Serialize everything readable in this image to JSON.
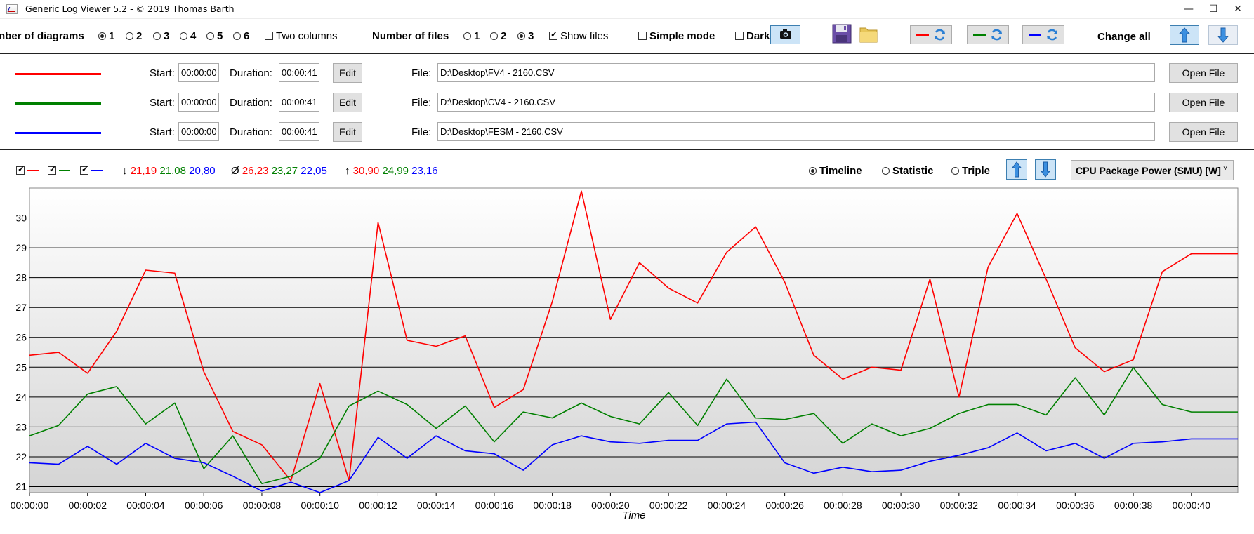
{
  "window": {
    "title": "Generic Log Viewer 5.2 - © 2019 Thomas Barth",
    "min_glyph": "—",
    "max_glyph": "☐",
    "close_glyph": "✕"
  },
  "toolbar": {
    "diagrams_label": "nber of diagrams",
    "diagram_options": [
      "1",
      "2",
      "3",
      "4",
      "5",
      "6"
    ],
    "diagram_selected": "1",
    "two_columns_label": "Two columns",
    "files_label": "Number of files",
    "file_options": [
      "1",
      "2",
      "3"
    ],
    "file_selected": "3",
    "show_files_label": "Show files",
    "simple_mode_label": "Simple mode",
    "dark_label": "Dark",
    "change_all_label": "Change all"
  },
  "files": [
    {
      "color": "#ff0000",
      "start_label": "Start:",
      "start": "00:00:00",
      "duration_label": "Duration:",
      "duration": "00:00:41",
      "edit_label": "Edit",
      "file_label": "File:",
      "path": "D:\\Desktop\\FV4 - 2160.CSV",
      "open_label": "Open File"
    },
    {
      "color": "#008000",
      "start_label": "Start:",
      "start": "00:00:00",
      "duration_label": "Duration:",
      "duration": "00:00:41",
      "edit_label": "Edit",
      "file_label": "File:",
      "path": "D:\\Desktop\\CV4 - 2160.CSV",
      "open_label": "Open File"
    },
    {
      "color": "#0000ff",
      "start_label": "Start:",
      "start": "00:00:00",
      "duration_label": "Duration:",
      "duration": "00:00:41",
      "edit_label": "Edit",
      "file_label": "File:",
      "path": "D:\\Desktop\\FESM - 2160.CSV",
      "open_label": "Open File"
    }
  ],
  "stats": {
    "min_symbol": "↓",
    "min": [
      "21,19",
      "21,08",
      "20,80"
    ],
    "avg_symbol": "Ø",
    "avg": [
      "26,23",
      "23,27",
      "22,05"
    ],
    "max_symbol": "↑",
    "max": [
      "30,90",
      "24,99",
      "23,16"
    ]
  },
  "view_modes": [
    "Timeline",
    "Statistic",
    "Triple"
  ],
  "view_selected": "Timeline",
  "sensor_select": "CPU Package Power (SMU) [W]",
  "colors": {
    "red": "#ff0000",
    "green": "#008000",
    "blue": "#0000ff",
    "accent": "#3c7fb1"
  },
  "chart_data": {
    "type": "line",
    "xlabel": "Time",
    "ylabel": "",
    "ylim": [
      20.8,
      31.0
    ],
    "y_ticks": [
      21,
      22,
      23,
      24,
      25,
      26,
      27,
      28,
      29,
      30
    ],
    "x_tick_labels": [
      "00:00:00",
      "00:00:02",
      "00:00:04",
      "00:00:06",
      "00:00:08",
      "00:00:10",
      "00:00:12",
      "00:00:14",
      "00:00:16",
      "00:00:18",
      "00:00:20",
      "00:00:22",
      "00:00:24",
      "00:00:26",
      "00:00:28",
      "00:00:30",
      "00:00:32",
      "00:00:34",
      "00:00:36",
      "00:00:38",
      "00:00:40"
    ],
    "xlim": [
      0,
      41.6
    ],
    "x": [
      0,
      1,
      2,
      3,
      4,
      5,
      6,
      7,
      8,
      9,
      10,
      11,
      12,
      13,
      14,
      15,
      16,
      17,
      18,
      19,
      20,
      21,
      22,
      23,
      24,
      25,
      26,
      27,
      28,
      29,
      30,
      31,
      32,
      33,
      34,
      35,
      36,
      37,
      38,
      39,
      40,
      41,
      41.6
    ],
    "series": [
      {
        "color": "#ff0000",
        "values": [
          25.4,
          25.5,
          24.8,
          26.2,
          28.25,
          28.15,
          24.85,
          22.85,
          22.4,
          21.2,
          24.45,
          21.2,
          29.85,
          25.9,
          25.7,
          26.05,
          23.65,
          24.25,
          27.2,
          30.9,
          26.6,
          28.5,
          27.65,
          27.15,
          28.85,
          29.7,
          27.85,
          25.4,
          24.6,
          25.0,
          24.9,
          27.95,
          24.0,
          28.35,
          30.15,
          27.95,
          25.65,
          24.85,
          25.25,
          28.2,
          28.8,
          28.8,
          28.8
        ]
      },
      {
        "color": "#008000",
        "values": [
          22.7,
          23.05,
          24.1,
          24.35,
          23.1,
          23.8,
          21.6,
          22.7,
          21.1,
          21.35,
          21.95,
          23.7,
          24.2,
          23.75,
          22.95,
          23.7,
          22.5,
          23.5,
          23.3,
          23.8,
          23.35,
          23.1,
          24.15,
          23.05,
          24.6,
          23.3,
          23.25,
          23.45,
          22.45,
          23.1,
          22.7,
          22.95,
          23.45,
          23.75,
          23.75,
          23.4,
          24.65,
          23.4,
          24.99,
          23.75,
          23.5,
          23.5,
          23.5
        ]
      },
      {
        "color": "#0000ff",
        "values": [
          21.8,
          21.75,
          22.35,
          21.75,
          22.45,
          21.95,
          21.8,
          21.35,
          20.85,
          21.15,
          20.8,
          21.2,
          22.65,
          21.95,
          22.7,
          22.2,
          22.1,
          21.55,
          22.4,
          22.7,
          22.5,
          22.45,
          22.55,
          22.55,
          23.1,
          23.16,
          21.8,
          21.45,
          21.65,
          21.5,
          21.55,
          21.85,
          22.05,
          22.3,
          22.8,
          22.2,
          22.45,
          21.95,
          22.45,
          22.5,
          22.6,
          22.6,
          22.6
        ]
      }
    ]
  }
}
